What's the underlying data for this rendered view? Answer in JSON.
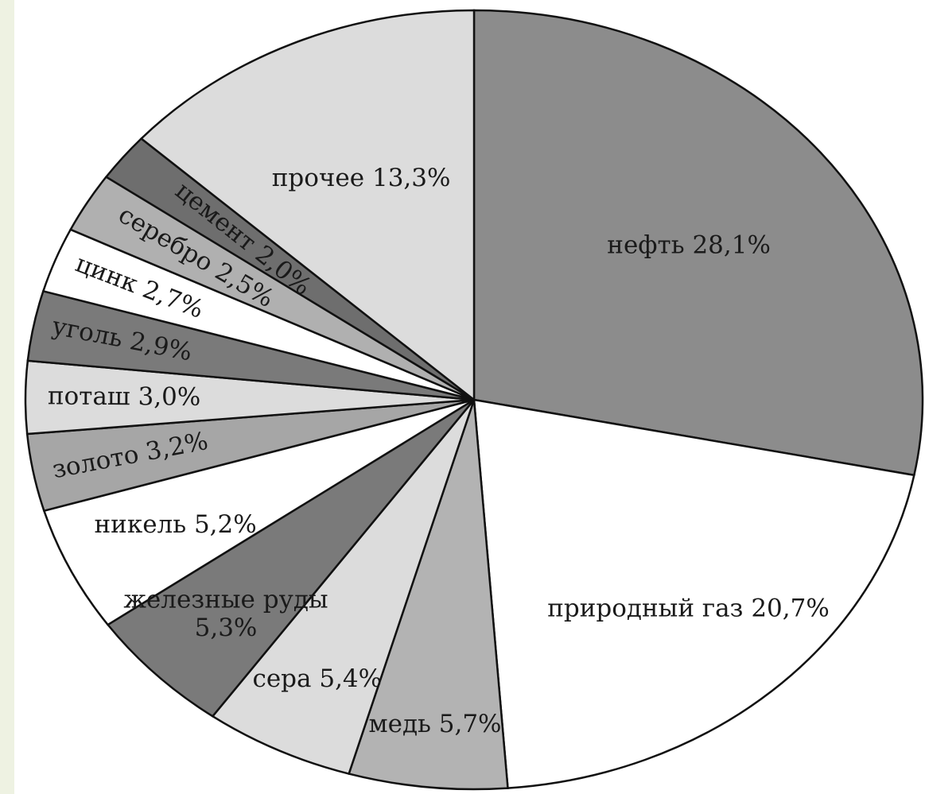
{
  "chart_data": {
    "type": "pie",
    "title": "",
    "unit": "%",
    "slices": [
      {
        "name": "нефть",
        "value": 28.1,
        "label": "нефть 28,1%",
        "color": "#8c8c8c"
      },
      {
        "name": "природный газ",
        "value": 20.7,
        "label": "природный газ 20,7%",
        "color": "#ffffff"
      },
      {
        "name": "медь",
        "value": 5.7,
        "label": "медь 5,7%",
        "color": "#b3b3b3"
      },
      {
        "name": "сера",
        "value": 5.4,
        "label": "сера 5,4%",
        "color": "#dcdcdc"
      },
      {
        "name": "железные руды",
        "value": 5.3,
        "label_lines": [
          "железные руды",
          "5,3%"
        ],
        "color": "#7a7a7a"
      },
      {
        "name": "никель",
        "value": 5.2,
        "label": "никель 5,2%",
        "color": "#ffffff"
      },
      {
        "name": "золото",
        "value": 3.2,
        "label": "золото 3,2%",
        "color": "#a6a6a6"
      },
      {
        "name": "поташ",
        "value": 3.0,
        "label": "поташ 3,0%",
        "color": "#dcdcdc"
      },
      {
        "name": "уголь",
        "value": 2.9,
        "label": "уголь 2,9%",
        "color": "#7a7a7a"
      },
      {
        "name": "цинк",
        "value": 2.7,
        "label": "цинк 2,7%",
        "color": "#ffffff"
      },
      {
        "name": "серебро",
        "value": 2.5,
        "label": "серебро 2,5%",
        "color": "#b0b0b0"
      },
      {
        "name": "цемент",
        "value": 2.0,
        "label": "цемент 2,0%",
        "color": "#6e6e6e"
      },
      {
        "name": "прочее",
        "value": 13.3,
        "label": "прочее 13,3%",
        "color": "#dcdcdc"
      }
    ],
    "start_angle": "12 o'clock",
    "direction": "clockwise",
    "legend": "none",
    "labels": "inside slices"
  }
}
